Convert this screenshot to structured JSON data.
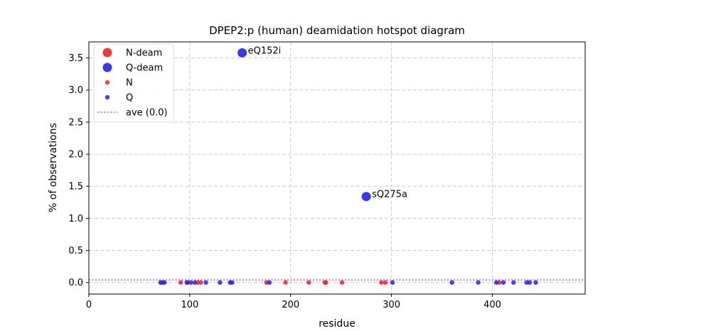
{
  "chart_data": {
    "type": "scatter",
    "title": "DPEP2:p (human) deamidation hotspot diagram",
    "xlabel": "residue",
    "ylabel": "% of observations",
    "xlim": [
      0,
      492
    ],
    "ylim": [
      -0.18,
      3.75
    ],
    "xticks": [
      0,
      100,
      200,
      300,
      400
    ],
    "yticks": [
      0.0,
      0.5,
      1.0,
      1.5,
      2.0,
      2.5,
      3.0,
      3.5
    ],
    "xtick_labels": [
      "0",
      "100",
      "200",
      "300",
      "400"
    ],
    "ytick_labels": [
      "0.0",
      "0.5",
      "1.0",
      "1.5",
      "2.0",
      "2.5",
      "3.0",
      "3.5"
    ],
    "grid": true,
    "legend_placement": "top-left",
    "colors": {
      "N": "#ee2222",
      "Q": "#2222ee",
      "ave": "#bb55cc"
    },
    "legend": [
      {
        "label": "N-deam",
        "kind": "big",
        "color": "#ee2222"
      },
      {
        "label": "Q-deam",
        "kind": "big",
        "color": "#2222ee"
      },
      {
        "label": "N",
        "kind": "small",
        "color": "#ee2222"
      },
      {
        "label": "Q",
        "kind": "small",
        "color": "#2222ee"
      },
      {
        "label": "ave (0.0)",
        "kind": "line",
        "color": "#bb55cc"
      }
    ],
    "average": 0.04,
    "series": [
      {
        "name": "N-deam",
        "points": []
      },
      {
        "name": "Q-deam",
        "points": [
          {
            "x": 152,
            "y": 3.58,
            "label": "eQ152i"
          },
          {
            "x": 275,
            "y": 1.34,
            "label": "sQ275a"
          }
        ]
      },
      {
        "name": "N",
        "x": [
          91,
          98,
          108,
          111,
          176,
          195,
          218,
          234,
          235,
          251,
          290,
          294,
          407
        ],
        "y": [
          0,
          0,
          0,
          0,
          0,
          0,
          0,
          0,
          0,
          0,
          0,
          0,
          0
        ]
      },
      {
        "name": "Q",
        "x": [
          71,
          73,
          75,
          97,
          101,
          105,
          116,
          130,
          140,
          142,
          179,
          301,
          360,
          386,
          404,
          411,
          421,
          434,
          437,
          443
        ],
        "y": [
          0,
          0,
          0,
          0,
          0,
          0,
          0,
          0,
          0,
          0,
          0,
          0,
          0,
          0,
          0,
          0,
          0,
          0,
          0,
          0
        ]
      }
    ]
  }
}
